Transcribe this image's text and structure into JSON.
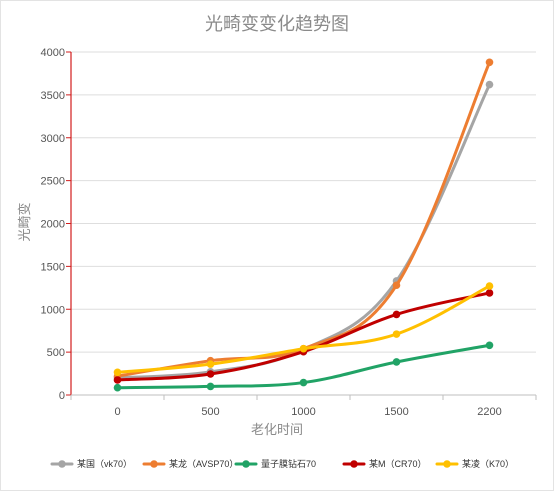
{
  "chart_data": {
    "type": "line",
    "title": "光畸变变化趋势图",
    "xlabel": "老化时间",
    "ylabel": "光畸变",
    "categories": [
      "0",
      "500",
      "1000",
      "1500",
      "2200"
    ],
    "ylim": [
      0,
      4000
    ],
    "yticks": [
      "0",
      "500",
      "1000",
      "1500",
      "2000",
      "2500",
      "3000",
      "3500",
      "4000"
    ],
    "grid": true,
    "smooth": true,
    "legend_position": "bottom",
    "series": [
      {
        "name": "某国（vk70）",
        "color": "#a5a5a5",
        "values": [
          200,
          270,
          530,
          1330,
          3620
        ]
      },
      {
        "name": "某龙（AVSP70）",
        "color": "#ed7d31",
        "values": [
          220,
          400,
          540,
          1280,
          3880
        ]
      },
      {
        "name": "量子膜钻石70",
        "color": "#21a366",
        "values": [
          85,
          100,
          145,
          385,
          580
        ]
      },
      {
        "name": "某M（CR70）",
        "color": "#c00000",
        "values": [
          175,
          245,
          505,
          940,
          1190
        ]
      },
      {
        "name": "某凌（K70）",
        "color": "#ffc000",
        "values": [
          265,
          360,
          540,
          710,
          1270
        ]
      }
    ]
  }
}
